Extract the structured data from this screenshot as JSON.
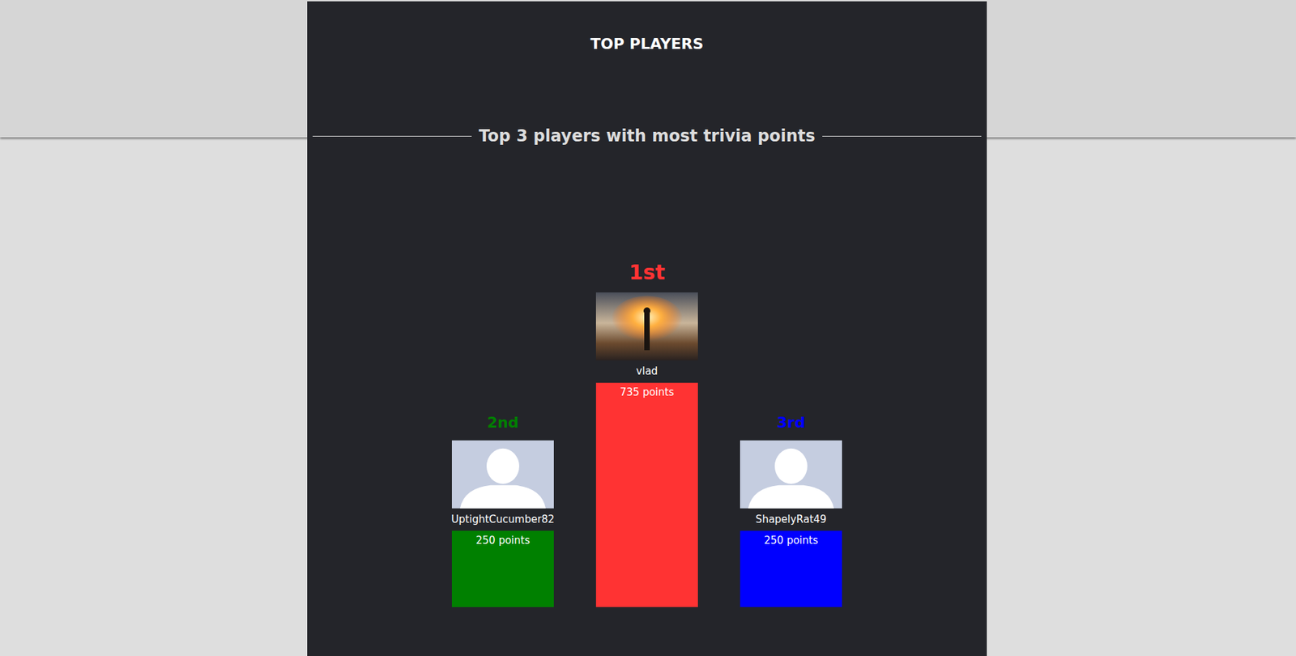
{
  "chart_data": {
    "type": "bar",
    "title": "TOP PLAYERS",
    "subtitle": "Top 3 players with most trivia points",
    "categories": [
      "UptightCucumber82",
      "vlad",
      "ShapelyRat49"
    ],
    "ranks": [
      "2nd",
      "1st",
      "3rd"
    ],
    "values": [
      250,
      735,
      250
    ],
    "value_labels": [
      "250 points",
      "735 points",
      "250 points"
    ],
    "colors": [
      "#008000",
      "#ff3333",
      "#0000ff"
    ],
    "ylim": [
      0,
      800
    ],
    "data_labels": true,
    "tick_labels": false,
    "grid": false
  }
}
